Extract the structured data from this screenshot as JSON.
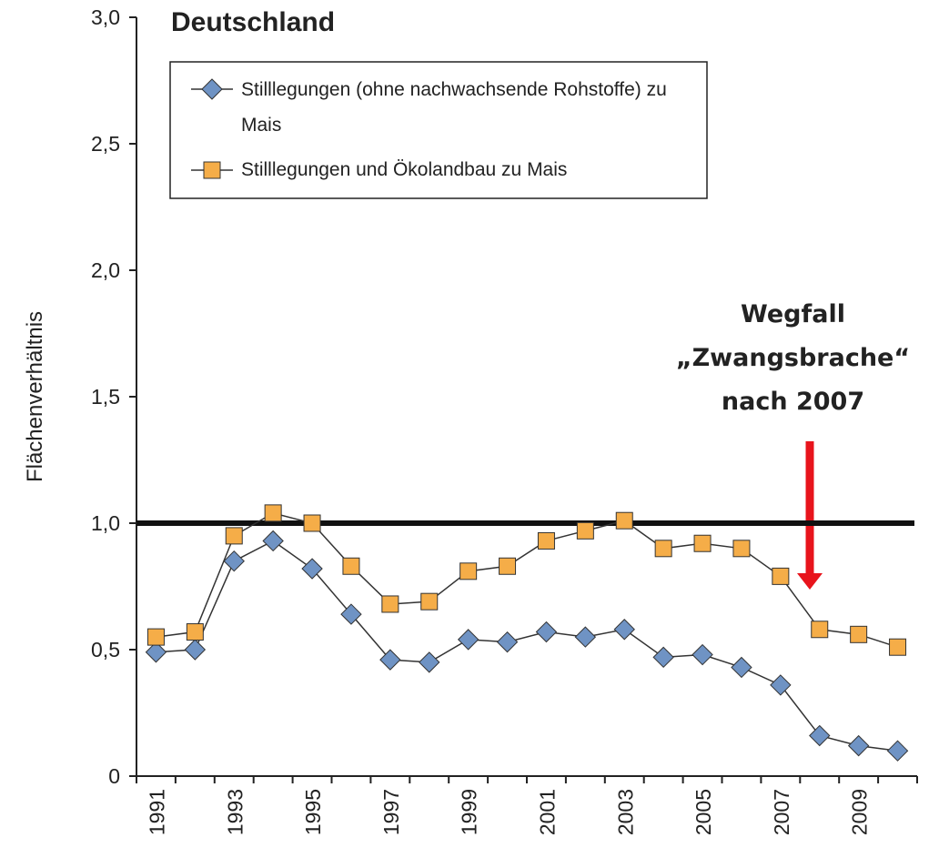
{
  "chart_data": {
    "type": "line",
    "title": "Deutschland",
    "y_label": "Flächenverhältnis",
    "categories": [
      "1991",
      null,
      "1993",
      null,
      "1995",
      null,
      "1997",
      null,
      "1999",
      null,
      "2001",
      null,
      "2003",
      null,
      "2005",
      null,
      "2007",
      null,
      "2009",
      null
    ],
    "series": [
      {
        "name": "Stilllegungen (ohne nachwachsende Rohstoffe) zu Mais",
        "color": "#6f93c4",
        "marker": "diamond",
        "values": [
          0.49,
          0.5,
          0.85,
          0.93,
          0.82,
          0.64,
          0.46,
          0.45,
          0.54,
          0.53,
          0.57,
          0.55,
          0.58,
          0.47,
          0.48,
          0.43,
          0.36,
          0.16,
          0.12,
          0.1
        ]
      },
      {
        "name": "Stilllegungen und Ökolandbau zu Mais",
        "color": "#f5ad48",
        "marker": "square",
        "values": [
          0.55,
          0.57,
          0.95,
          1.04,
          1.0,
          0.83,
          0.68,
          0.69,
          0.81,
          0.83,
          0.93,
          0.97,
          1.01,
          0.9,
          0.92,
          0.9,
          0.79,
          0.58,
          0.56,
          0.51
        ]
      }
    ],
    "ylim": [
      0,
      3
    ],
    "yticks": [
      0,
      {
        "value": 0.5,
        "label": "0,5"
      },
      {
        "value": 1,
        "label": "1,0"
      },
      {
        "value": 1.5,
        "label": "1,5"
      },
      {
        "value": 2,
        "label": "2,0"
      },
      {
        "value": 2.5,
        "label": "2,5"
      },
      {
        "value": 3,
        "label": "3,0"
      }
    ],
    "reference_line": 1,
    "annotation": [
      "Wegfall",
      "„Zwangsbrache“",
      "nach 2007"
    ]
  }
}
